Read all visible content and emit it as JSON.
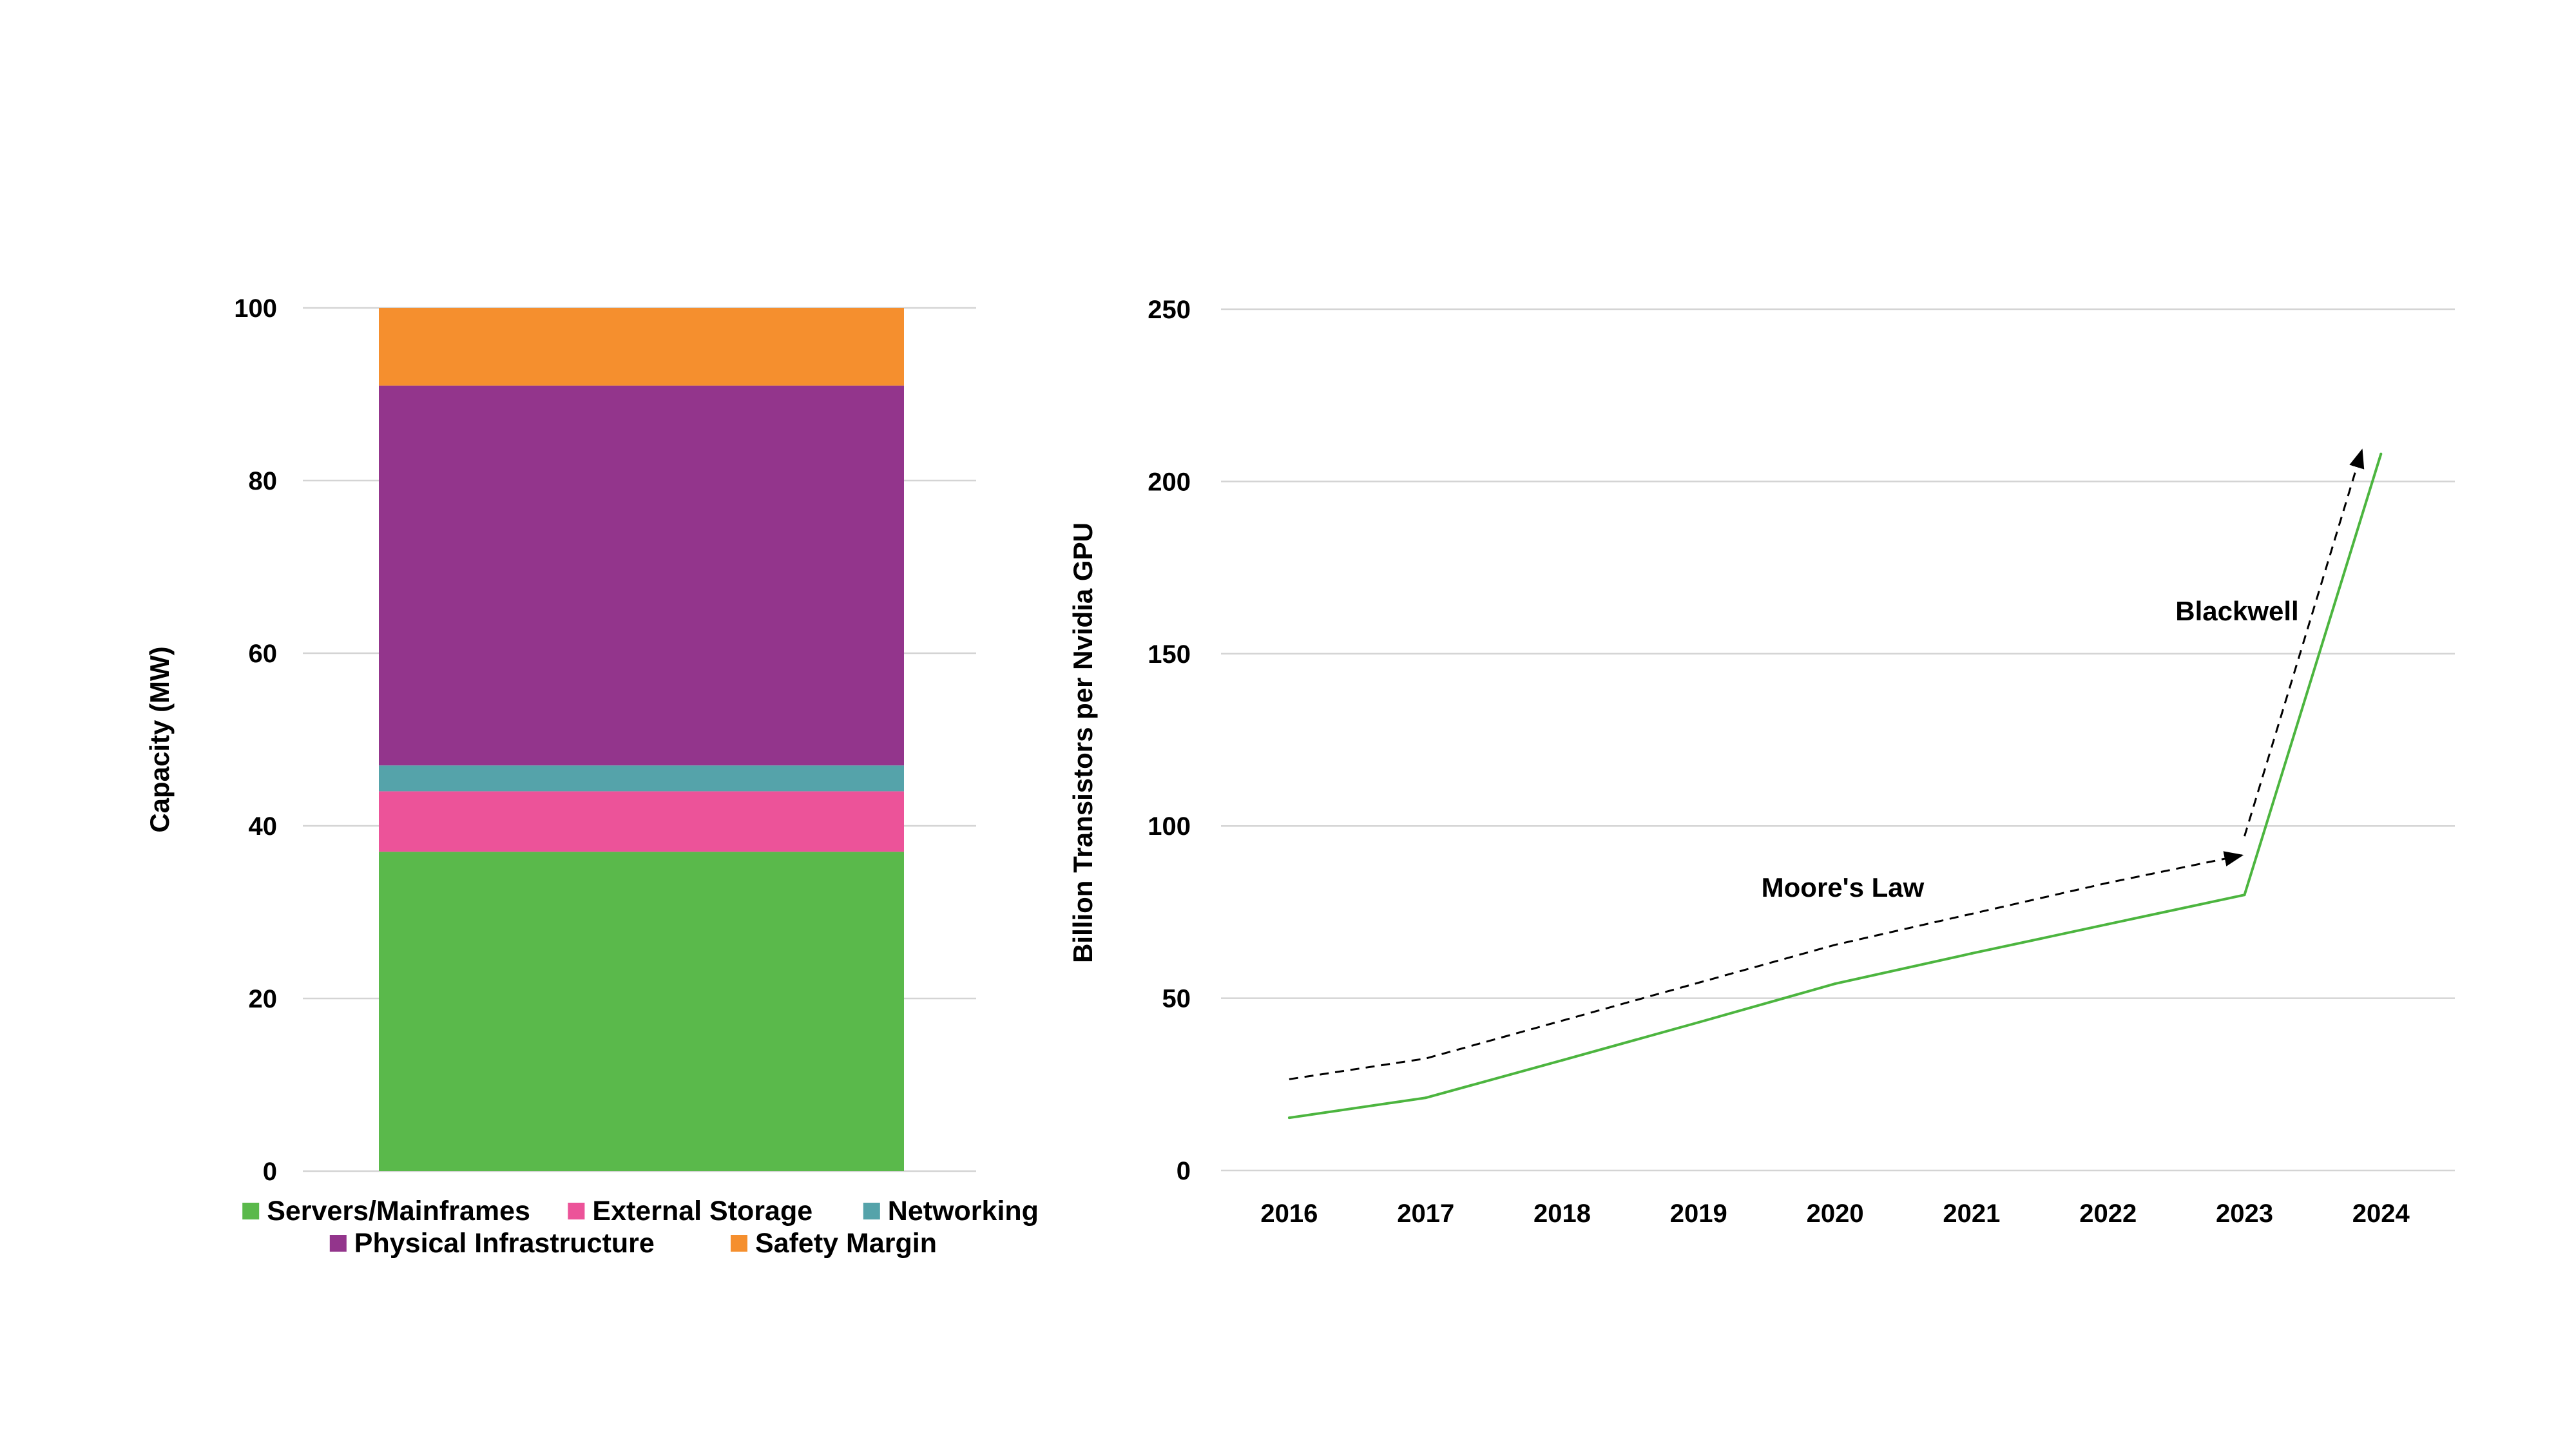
{
  "chart_data": [
    {
      "type": "bar",
      "stacked": true,
      "categories": [
        ""
      ],
      "ylabel": "Capacity (MW)",
      "ylim": [
        0,
        100
      ],
      "yticks": [
        0,
        20,
        40,
        60,
        80,
        100
      ],
      "grid": true,
      "legend_position": "bottom",
      "series": [
        {
          "name": "Servers/Mainframes",
          "values": [
            37
          ],
          "color": "#5ab94b"
        },
        {
          "name": "External Storage",
          "values": [
            7
          ],
          "color": "#ec5399"
        },
        {
          "name": "Networking",
          "values": [
            3
          ],
          "color": "#55a3aa"
        },
        {
          "name": "Physical Infrastructure",
          "values": [
            44
          ],
          "color": "#93358c"
        },
        {
          "name": "Safety Margin",
          "values": [
            9
          ],
          "color": "#f58f2e"
        }
      ]
    },
    {
      "type": "line",
      "x": [
        "2016",
        "2017",
        "2018",
        "2019",
        "2020",
        "2021",
        "2022",
        "2023",
        "2024"
      ],
      "ylabel": "Billion Transistors per Nvidia GPU",
      "ylim": [
        0,
        250
      ],
      "yticks": [
        0,
        50,
        100,
        150,
        200,
        250
      ],
      "grid": true,
      "series": [
        {
          "values": [
            15.3,
            21.1,
            32,
            43,
            54.2,
            63,
            71.5,
            80,
            208
          ],
          "color": "#4cb53f"
        }
      ],
      "trend_lines": [
        {
          "label": "Moore's Law",
          "x_from": 2016,
          "y_from": 26.5,
          "x_to": 2022.98,
          "y_to": 91.5
        },
        {
          "label": "Blackwell",
          "x_from": 2023,
          "y_from": 97,
          "x_to": 2023.86,
          "y_to": 209
        }
      ]
    }
  ]
}
